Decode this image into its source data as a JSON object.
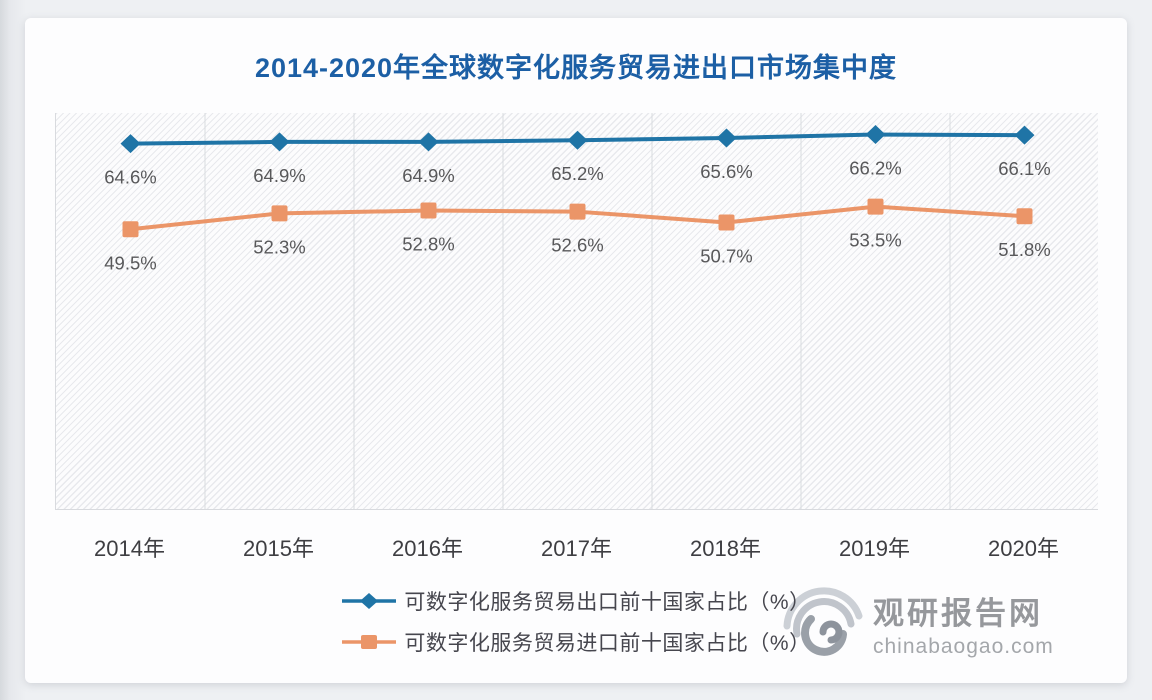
{
  "title": "2014-2020年全球数字化服务贸易进出口市场集中度",
  "chart_data": {
    "type": "line",
    "title": "2014-2020年全球数字化服务贸易进出口市场集中度",
    "categories": [
      "2014年",
      "2015年",
      "2016年",
      "2017年",
      "2018年",
      "2019年",
      "2020年"
    ],
    "series": [
      {
        "name": "可数字化服务贸易出口前十国家占比（%）",
        "values": [
          64.6,
          64.9,
          64.9,
          65.2,
          65.6,
          66.2,
          66.1
        ],
        "labels": [
          "64.6%",
          "64.9%",
          "64.9%",
          "65.2%",
          "65.6%",
          "66.2%",
          "66.1%"
        ],
        "color": "#1f74a6",
        "marker": "diamond"
      },
      {
        "name": "可数字化服务贸易进口前十国家占比（%）",
        "values": [
          49.5,
          52.3,
          52.8,
          52.6,
          50.7,
          53.5,
          51.8
        ],
        "labels": [
          "49.5%",
          "52.3%",
          "52.8%",
          "52.6%",
          "50.7%",
          "53.5%",
          "51.8%"
        ],
        "color": "#eb9568",
        "marker": "square"
      }
    ],
    "ylim": [
      0,
      70
    ],
    "xlabel": "",
    "ylabel": "",
    "grid": "vertical-column-separators",
    "plot_background": "diagonal-hatch",
    "legend_position": "bottom",
    "data_labels": "below-points"
  },
  "watermark": {
    "site_name": "观研报告网",
    "site_url": "chinabaogao.com"
  },
  "colors": {
    "title": "#1c5fa5",
    "export_series": "#1f74a6",
    "import_series": "#eb9568",
    "data_label": "#58585a",
    "axis_label": "#3e3e42",
    "gridline": "#d9dbdf",
    "watermark_gray": "#96989c"
  }
}
